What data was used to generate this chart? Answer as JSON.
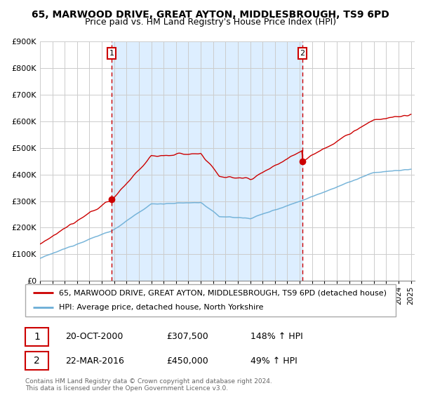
{
  "title": "65, MARWOOD DRIVE, GREAT AYTON, MIDDLESBROUGH, TS9 6PD",
  "subtitle": "Price paid vs. HM Land Registry's House Price Index (HPI)",
  "legend_line1": "65, MARWOOD DRIVE, GREAT AYTON, MIDDLESBROUGH, TS9 6PD (detached house)",
  "legend_line2": "HPI: Average price, detached house, North Yorkshire",
  "sale1_date": "20-OCT-2000",
  "sale1_price": 307500,
  "sale1_hpi_pct": "148% ↑ HPI",
  "sale2_date": "22-MAR-2016",
  "sale2_price": 450000,
  "sale2_hpi_pct": "49% ↑ HPI",
  "footnote": "Contains HM Land Registry data © Crown copyright and database right 2024.\nThis data is licensed under the Open Government Licence v3.0.",
  "hpi_color": "#6baed6",
  "property_color": "#cc0000",
  "bg_highlight_color": "#ddeeff",
  "vline_color": "#cc0000",
  "ylim": [
    0,
    900000
  ],
  "start_year": 1995,
  "end_year": 2025,
  "sale1_year": 2000.8,
  "sale2_year": 2016.22
}
